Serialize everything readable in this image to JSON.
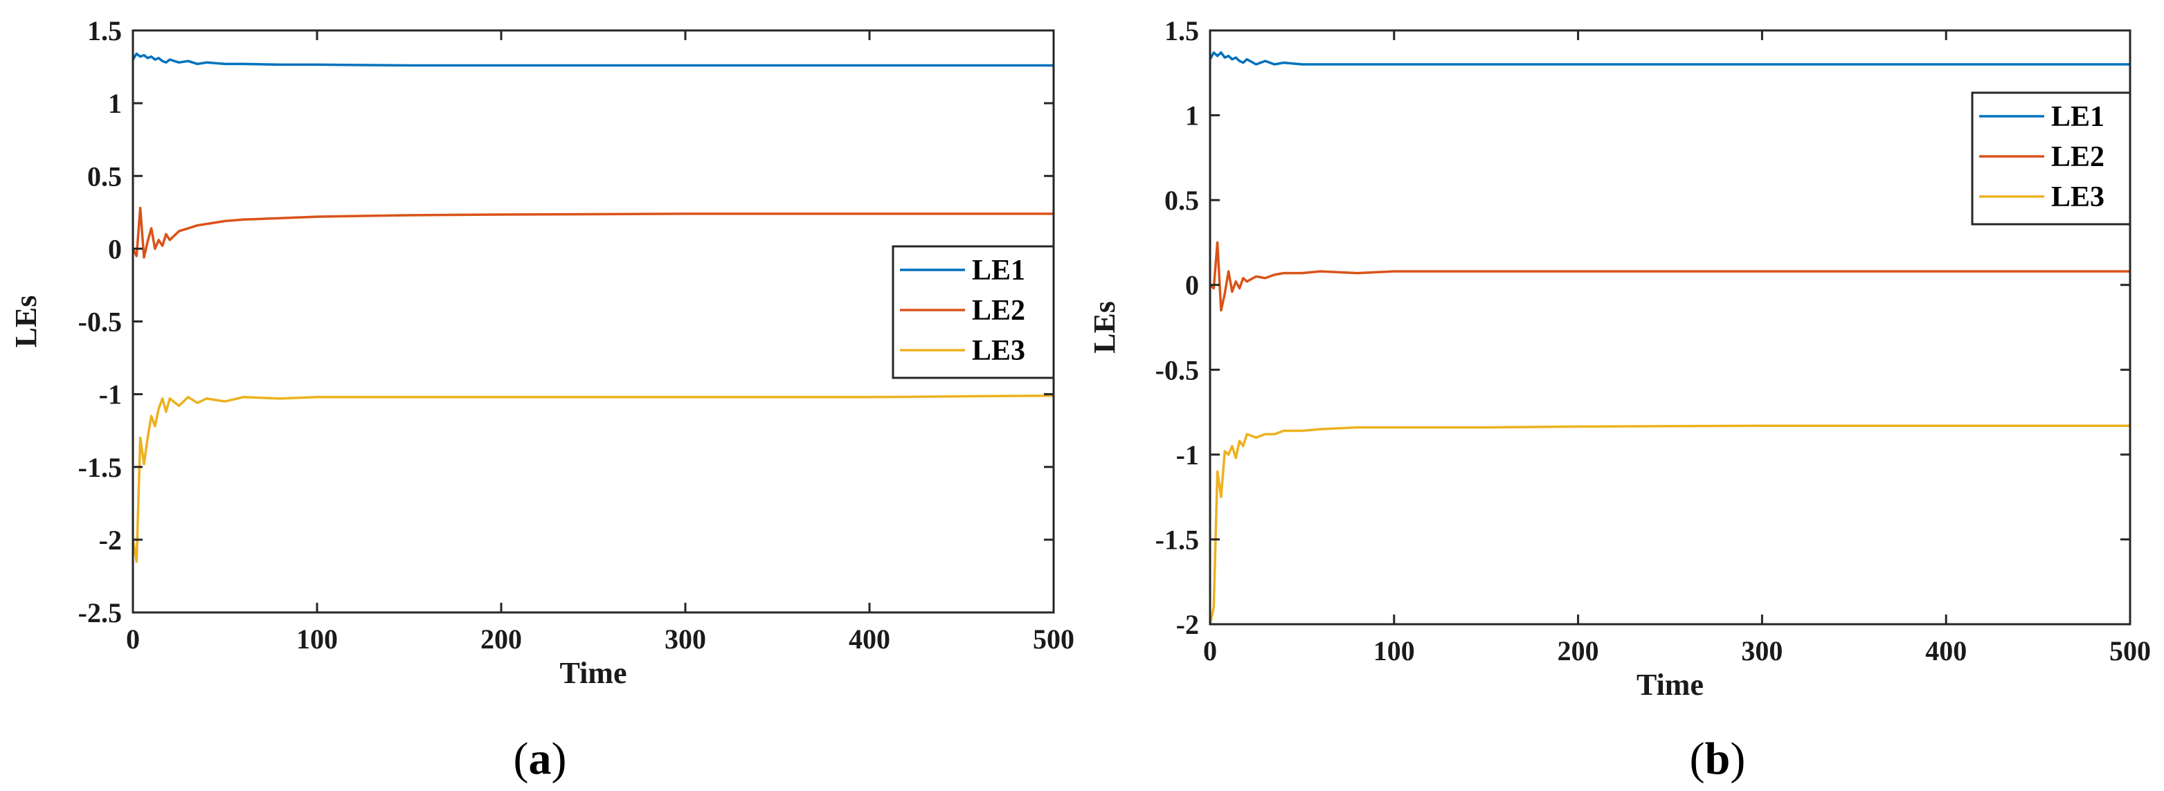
{
  "chart_data": [
    {
      "type": "line",
      "panel_label": "a",
      "xlabel": "Time",
      "ylabel": "LEs",
      "xlim": [
        0,
        500
      ],
      "ylim": [
        -2.5,
        1.5
      ],
      "xticks": [
        "0",
        "100",
        "200",
        "300",
        "400",
        "500"
      ],
      "yticks": [
        "1.5",
        "1",
        "0.5",
        "0",
        "-0.5",
        "-1",
        "-1.5",
        "-2",
        "-2.5"
      ],
      "legend_position": "right",
      "series": [
        {
          "name": "LE1",
          "color": "#0072BD",
          "x": [
            0,
            2,
            4,
            6,
            8,
            10,
            12,
            14,
            16,
            18,
            20,
            25,
            30,
            35,
            40,
            50,
            60,
            80,
            100,
            150,
            200,
            300,
            400,
            500
          ],
          "y": [
            1.3,
            1.34,
            1.32,
            1.33,
            1.31,
            1.32,
            1.3,
            1.31,
            1.29,
            1.28,
            1.3,
            1.28,
            1.29,
            1.27,
            1.28,
            1.27,
            1.27,
            1.265,
            1.265,
            1.26,
            1.26,
            1.26,
            1.26,
            1.26
          ]
        },
        {
          "name": "LE2",
          "color": "#D95319",
          "x": [
            0,
            2,
            4,
            6,
            8,
            10,
            12,
            14,
            16,
            18,
            20,
            25,
            30,
            35,
            40,
            50,
            60,
            80,
            100,
            150,
            200,
            300,
            400,
            500
          ],
          "y": [
            0.0,
            -0.05,
            0.28,
            -0.06,
            0.05,
            0.14,
            0.0,
            0.06,
            0.02,
            0.1,
            0.06,
            0.12,
            0.14,
            0.16,
            0.17,
            0.19,
            0.2,
            0.21,
            0.22,
            0.23,
            0.235,
            0.24,
            0.24,
            0.24
          ]
        },
        {
          "name": "LE3",
          "color": "#EDB120",
          "x": [
            0,
            2,
            4,
            6,
            8,
            10,
            12,
            14,
            16,
            18,
            20,
            25,
            30,
            35,
            40,
            50,
            60,
            80,
            100,
            150,
            200,
            300,
            400,
            500
          ],
          "y": [
            -2.0,
            -2.15,
            -1.3,
            -1.48,
            -1.3,
            -1.15,
            -1.22,
            -1.1,
            -1.03,
            -1.12,
            -1.03,
            -1.08,
            -1.02,
            -1.06,
            -1.03,
            -1.05,
            -1.02,
            -1.03,
            -1.02,
            -1.02,
            -1.02,
            -1.02,
            -1.02,
            -1.01
          ]
        }
      ]
    },
    {
      "type": "line",
      "panel_label": "b",
      "xlabel": "Time",
      "ylabel": "LEs",
      "xlim": [
        0,
        500
      ],
      "ylim": [
        -2,
        1.5
      ],
      "xticks": [
        "0",
        "100",
        "200",
        "300",
        "400",
        "500"
      ],
      "yticks": [
        "1.5",
        "1",
        "0.5",
        "0",
        "-0.5",
        "-1",
        "-1.5",
        "-2"
      ],
      "legend_position": "top-right",
      "series": [
        {
          "name": "LE1",
          "color": "#0072BD",
          "x": [
            0,
            2,
            4,
            6,
            8,
            10,
            12,
            14,
            16,
            18,
            20,
            25,
            30,
            35,
            40,
            50,
            60,
            80,
            100,
            150,
            200,
            300,
            400,
            500
          ],
          "y": [
            1.33,
            1.37,
            1.35,
            1.37,
            1.34,
            1.35,
            1.33,
            1.34,
            1.32,
            1.31,
            1.33,
            1.3,
            1.32,
            1.3,
            1.31,
            1.3,
            1.3,
            1.3,
            1.3,
            1.3,
            1.3,
            1.3,
            1.3,
            1.3
          ]
        },
        {
          "name": "LE2",
          "color": "#D95319",
          "x": [
            0,
            2,
            4,
            6,
            8,
            10,
            12,
            14,
            16,
            18,
            20,
            25,
            30,
            35,
            40,
            50,
            60,
            80,
            100,
            150,
            200,
            300,
            400,
            500
          ],
          "y": [
            0.0,
            -0.02,
            0.25,
            -0.15,
            -0.05,
            0.08,
            -0.04,
            0.02,
            -0.02,
            0.04,
            0.02,
            0.05,
            0.04,
            0.06,
            0.07,
            0.07,
            0.08,
            0.07,
            0.08,
            0.08,
            0.08,
            0.08,
            0.08,
            0.08
          ]
        },
        {
          "name": "LE3",
          "color": "#EDB120",
          "x": [
            0,
            2,
            4,
            6,
            8,
            10,
            12,
            14,
            16,
            18,
            20,
            25,
            30,
            35,
            40,
            50,
            60,
            80,
            100,
            150,
            200,
            300,
            400,
            500
          ],
          "y": [
            -2.0,
            -1.9,
            -1.1,
            -1.25,
            -0.98,
            -1.0,
            -0.95,
            -1.02,
            -0.92,
            -0.95,
            -0.88,
            -0.9,
            -0.88,
            -0.88,
            -0.86,
            -0.86,
            -0.85,
            -0.84,
            -0.84,
            -0.84,
            -0.835,
            -0.83,
            -0.83,
            -0.83
          ]
        }
      ]
    }
  ]
}
